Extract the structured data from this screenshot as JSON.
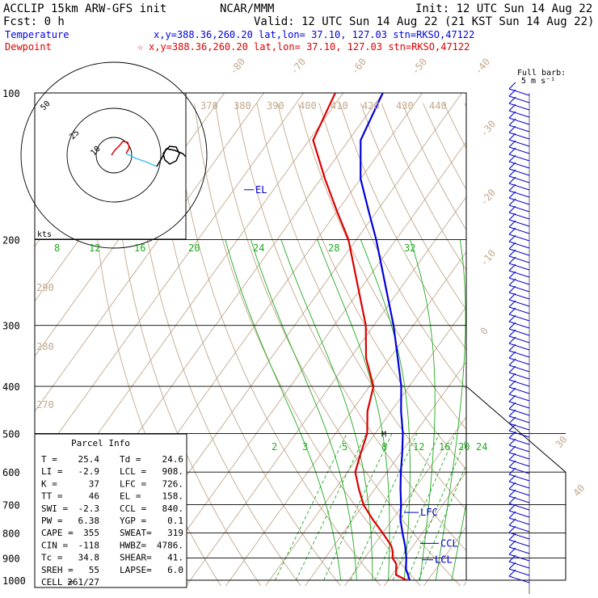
{
  "header": {
    "line1_left": "ACCLIP 15km ARW-GFS init",
    "line1_center": "NCAR/MMM",
    "line1_right": "Init: 12 UTC Sun 14 Aug 22",
    "line2_left": "Fcst:   0 h",
    "line2_right": "Valid: 12 UTC Sun 14 Aug 22 (21 KST Sun 14 Aug 22)",
    "temp_label": "Temperature",
    "temp_info": "x,y=388.36,260.20   lat,lon= 37.10, 127.03  stn=RKSO,47122",
    "dew_label": "Dewpoint",
    "dew_marker": "☆",
    "dew_info": "x,y=388.36,260.20   lat,lon= 37.10, 127.03  stn=RKSO,47122"
  },
  "colors": {
    "temperature": "#0000dd",
    "dewpoint": "#dd0000",
    "isotherm": "#c2a88c",
    "theta": "#c2a88c",
    "moist": "#22aa22",
    "mixing": "#22aa22",
    "wind": "#0000cc",
    "hodograph_low": "#dd0000",
    "hodograph_mid": "#33bbee"
  },
  "barb_legend": [
    "Full barb:",
    "5 m s⁻¹"
  ],
  "pressure_labels": [
    "100",
    "200",
    "300",
    "400",
    "500",
    "600",
    "700",
    "800",
    "900",
    "1000"
  ],
  "isotherm_labels": [
    "-80",
    "-70",
    "-60",
    "-50",
    "-40",
    "-30",
    "-20",
    "-10",
    "0",
    "30",
    "40"
  ],
  "theta_labels": [
    "370",
    "380",
    "390",
    "400",
    "410",
    "420",
    "430",
    "440",
    "290",
    "280",
    "270"
  ],
  "moist_labels": [
    "8",
    "12",
    "16",
    "20",
    "24",
    "28",
    "32"
  ],
  "mixing_labels": [
    "2",
    "3",
    "5",
    "8",
    "12",
    "16",
    "20",
    "24"
  ],
  "annotations": {
    "el": "EL",
    "lfc": "LFC",
    "ccl": "CCL",
    "lcl": "LCL",
    "m": "M"
  },
  "hodograph": {
    "ring_labels": [
      "50",
      "25",
      "10"
    ],
    "units": "kts"
  },
  "parcel": {
    "title": "Parcel Info",
    "rows": [
      [
        "T  =",
        "25.4",
        "Td =",
        "24.6"
      ],
      [
        "LI =",
        "-2.9",
        "LCL =",
        "908."
      ],
      [
        "K  =",
        "37",
        "LFC =",
        "726."
      ],
      [
        "TT =",
        "46",
        "EL  =",
        "158."
      ],
      [
        "SWI =",
        "-2.3",
        "CCL =",
        "840."
      ],
      [
        "PW =",
        "6.38",
        "YGP =",
        "0.1"
      ],
      [
        "CAPE =",
        "355",
        "SWEAT=",
        "319"
      ],
      [
        "CIN =",
        "-118",
        "HWBZ=",
        "4786."
      ],
      [
        "Tc =",
        "34.8",
        "SHEAR=",
        "41."
      ],
      [
        "SREH =",
        "55",
        "LAPSE=",
        "6.0"
      ],
      [
        "CELL =",
        "261/27",
        "",
        ""
      ]
    ]
  },
  "chart_data": {
    "type": "line",
    "title": "",
    "xlabel": "",
    "ylabel": "",
    "y_axis": "pressure (hPa), log scale",
    "ylim": [
      1000,
      100
    ],
    "series": [
      {
        "name": "Temperature",
        "points": [
          [
            1000,
            25.4
          ],
          [
            975,
            24
          ],
          [
            950,
            22.5
          ],
          [
            925,
            21.5
          ],
          [
            900,
            20.5
          ],
          [
            850,
            18
          ],
          [
            800,
            15
          ],
          [
            750,
            12
          ],
          [
            700,
            9.5
          ],
          [
            650,
            6.5
          ],
          [
            600,
            3.5
          ],
          [
            550,
            0.5
          ],
          [
            500,
            -3
          ],
          [
            450,
            -7.5
          ],
          [
            400,
            -12
          ],
          [
            350,
            -18
          ],
          [
            300,
            -25
          ],
          [
            250,
            -34
          ],
          [
            200,
            -45
          ],
          [
            175,
            -52
          ],
          [
            150,
            -60
          ],
          [
            125,
            -67
          ],
          [
            100,
            -70
          ]
        ]
      },
      {
        "name": "Dewpoint",
        "points": [
          [
            1000,
            24.6
          ],
          [
            975,
            21
          ],
          [
            950,
            20
          ],
          [
            925,
            19
          ],
          [
            900,
            17
          ],
          [
            875,
            16
          ],
          [
            850,
            14.5
          ],
          [
            800,
            10
          ],
          [
            750,
            5
          ],
          [
            700,
            0
          ],
          [
            650,
            -4
          ],
          [
            600,
            -8
          ],
          [
            550,
            -10
          ],
          [
            500,
            -12
          ],
          [
            450,
            -16
          ],
          [
            400,
            -19
          ],
          [
            350,
            -26
          ],
          [
            300,
            -32
          ],
          [
            250,
            -41
          ],
          [
            200,
            -52
          ],
          [
            175,
            -60
          ],
          [
            150,
            -69
          ],
          [
            125,
            -79
          ],
          [
            100,
            -82
          ]
        ]
      }
    ]
  }
}
